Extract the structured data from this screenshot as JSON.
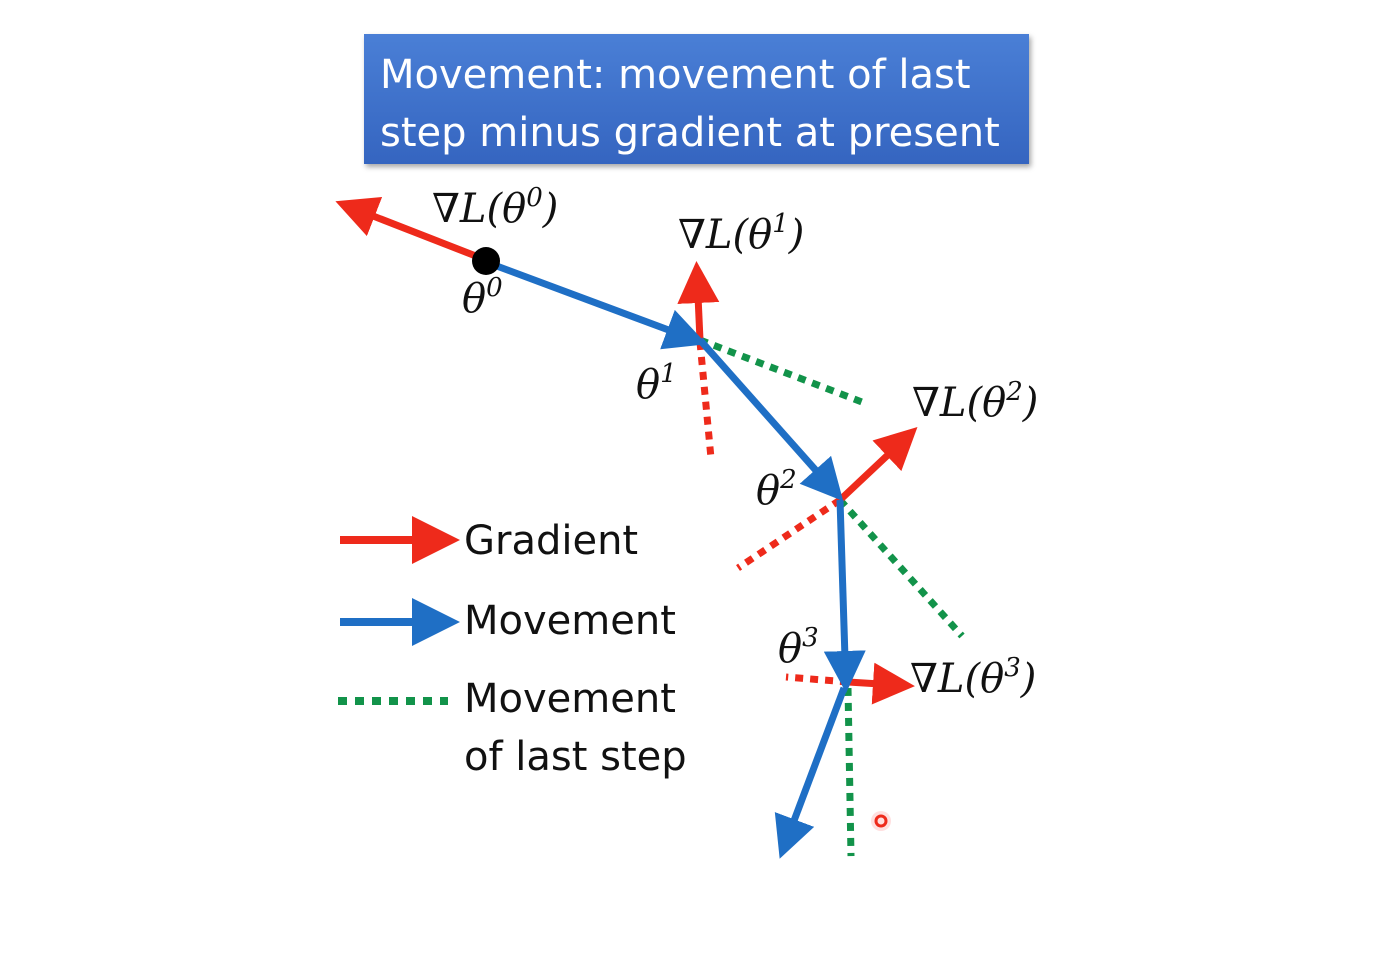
{
  "title": {
    "line1": "Movement: movement of last",
    "line2": "step minus gradient at present"
  },
  "points": [
    {
      "label": "θ⁰",
      "sym": "θ",
      "sup": "0"
    },
    {
      "label": "θ¹",
      "sym": "θ",
      "sup": "1"
    },
    {
      "label": "θ²",
      "sym": "θ",
      "sup": "2"
    },
    {
      "label": "θ³",
      "sym": "θ",
      "sup": "3"
    }
  ],
  "gradients": [
    {
      "label": "∇L(θ⁰)",
      "prefix": "∇L(θ",
      "sup": "0",
      "suffix": ")"
    },
    {
      "label": "∇L(θ¹)",
      "prefix": "∇L(θ",
      "sup": "1",
      "suffix": ")"
    },
    {
      "label": "∇L(θ²)",
      "prefix": "∇L(θ",
      "sup": "2",
      "suffix": ")"
    },
    {
      "label": "∇L(θ³)",
      "prefix": "∇L(θ",
      "sup": "3",
      "suffix": ")"
    }
  ],
  "legend": {
    "gradient": "Gradient",
    "movement": "Movement",
    "last_step_line1": "Movement",
    "last_step_line2": "of last step"
  },
  "colors": {
    "gradient": "#ee2a1b",
    "movement": "#1f6fc5",
    "last_step": "#12934a",
    "title_bg": "#3d6fc9"
  }
}
